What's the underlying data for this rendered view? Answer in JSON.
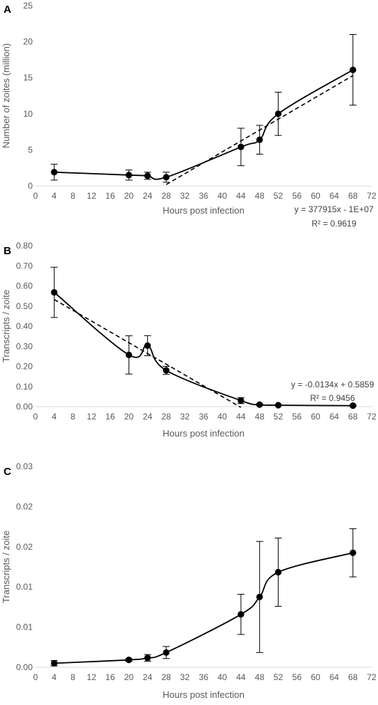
{
  "chart_data": [
    {
      "type": "line",
      "panel_label": "A",
      "xlabel": "Hours post infection",
      "ylabel": "Number of zoites (million)",
      "xlim": [
        0,
        72
      ],
      "xticks": [
        "0",
        "4",
        "8",
        "12",
        "16",
        "20",
        "24",
        "28",
        "32",
        "36",
        "40",
        "44",
        "48",
        "52",
        "56",
        "60",
        "64",
        "68",
        "72"
      ],
      "ylim": [
        0,
        25
      ],
      "yticks": [
        "0",
        "5",
        "10",
        "15",
        "20",
        "25"
      ],
      "grid": false,
      "legend": "none",
      "series": [
        {
          "x": [
            4,
            20,
            24,
            28,
            44,
            48,
            52,
            68
          ],
          "values": [
            1.9,
            1.5,
            1.4,
            1.2,
            5.4,
            6.4,
            10.0,
            16.1
          ],
          "error": [
            1.1,
            0.7,
            0.5,
            0.7,
            2.6,
            2.0,
            3.0,
            4.9
          ]
        }
      ],
      "trendline": {
        "style": "dashed",
        "slope_per_hour": 0.378,
        "intercept": -10.4,
        "x_range": [
          28,
          68
        ],
        "equation": "y = 377915x - 1E+07",
        "r2": "R² = 0.9619"
      }
    },
    {
      "type": "line",
      "panel_label": "B",
      "xlabel": "Hours post infection",
      "ylabel": "Transcripts / zoite",
      "xlim": [
        0,
        72
      ],
      "xticks": [
        "0",
        "4",
        "8",
        "12",
        "16",
        "20",
        "24",
        "28",
        "32",
        "36",
        "40",
        "44",
        "48",
        "52",
        "56",
        "60",
        "64",
        "68",
        "72"
      ],
      "ylim": [
        0,
        0.8
      ],
      "yticks": [
        "0.00",
        "0.10",
        "0.20",
        "0.30",
        "0.40",
        "0.50",
        "0.60",
        "0.70",
        "0.80"
      ],
      "grid": false,
      "legend": "none",
      "series": [
        {
          "x": [
            4,
            20,
            24,
            28,
            44,
            48,
            52,
            68
          ],
          "values": [
            0.568,
            0.257,
            0.303,
            0.18,
            0.03,
            0.01,
            0.007,
            0.005
          ],
          "error": [
            0.125,
            0.095,
            0.05,
            0.02,
            0.015,
            0.004,
            0.002,
            0.002
          ]
        }
      ],
      "trendline": {
        "style": "dashed",
        "slope_per_hour": -0.0134,
        "intercept": 0.5859,
        "x_range": [
          4,
          44
        ],
        "equation": "y = -0.0134x + 0.5859",
        "r2": "R² = 0.9456"
      }
    },
    {
      "type": "line",
      "panel_label": "C",
      "xlabel": "Hours post infection",
      "ylabel": "Transcripts / zoite",
      "xlim": [
        0,
        72
      ],
      "xticks": [
        "0",
        "4",
        "8",
        "12",
        "16",
        "20",
        "24",
        "28",
        "32",
        "36",
        "40",
        "44",
        "48",
        "52",
        "56",
        "60",
        "64",
        "68",
        "72"
      ],
      "ylim": [
        0,
        0.03
      ],
      "yticks": [
        "0.00",
        "0.01",
        "0.01",
        "0.02",
        "0.02",
        "0.03"
      ],
      "grid": false,
      "legend": "none",
      "series": [
        {
          "x": [
            4,
            20,
            24,
            28,
            44,
            48,
            52,
            68
          ],
          "values": [
            0.0006,
            0.0011,
            0.0014,
            0.0022,
            0.0079,
            0.0105,
            0.0142,
            0.0171
          ],
          "error": [
            0.0004,
            0.0002,
            0.0005,
            0.0009,
            0.003,
            0.0083,
            0.0051,
            0.0036
          ]
        }
      ]
    }
  ]
}
